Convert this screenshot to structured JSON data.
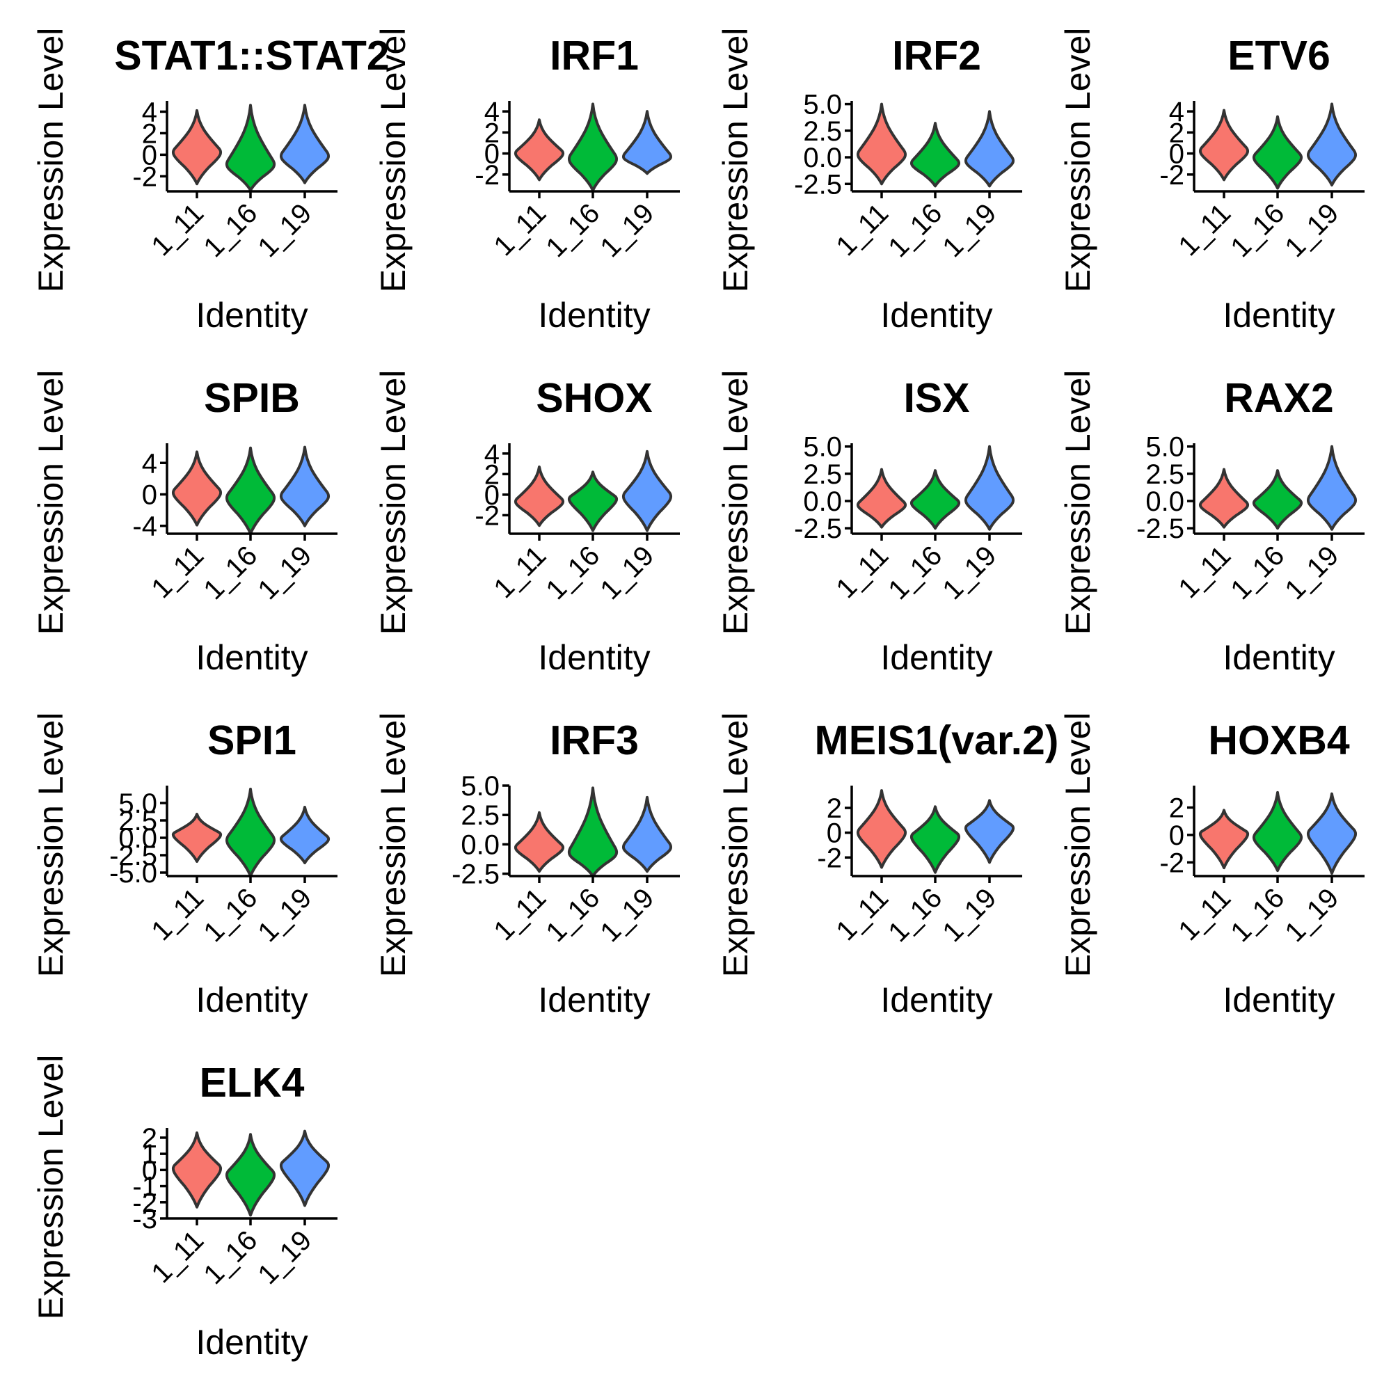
{
  "colors": {
    "group_fills": [
      "#f8766d",
      "#00ba38",
      "#619cff"
    ],
    "outline": "#333333",
    "axis": "#000000",
    "background": "#ffffff"
  },
  "chart_data": [
    {
      "type": "violin",
      "title": "STAT1::STAT2",
      "xlabel": "Identity",
      "ylabel": "Expression Level",
      "categories": [
        "1_11",
        "1_16",
        "1_19"
      ],
      "ylim": [
        -3.4,
        5.0
      ],
      "yticks": [
        -2,
        0,
        2,
        4
      ],
      "ytick_labels": [
        "-2",
        "0",
        "2",
        "4"
      ],
      "violins": [
        {
          "category": "1_11",
          "min": -2.7,
          "max": 4.1,
          "center": 0.2
        },
        {
          "category": "1_16",
          "min": -3.3,
          "max": 4.6,
          "center": -1.0
        },
        {
          "category": "1_19",
          "min": -2.6,
          "max": 4.6,
          "center": -0.2
        }
      ]
    },
    {
      "type": "violin",
      "title": "IRF1",
      "xlabel": "Identity",
      "ylabel": "Expression Level",
      "categories": [
        "1_11",
        "1_16",
        "1_19"
      ],
      "ylim": [
        -3.6,
        5.0
      ],
      "yticks": [
        -2,
        0,
        2,
        4
      ],
      "ytick_labels": [
        "-2",
        "0",
        "2",
        "4"
      ],
      "violins": [
        {
          "category": "1_11",
          "min": -2.5,
          "max": 3.2,
          "center": 0.0
        },
        {
          "category": "1_16",
          "min": -3.5,
          "max": 4.7,
          "center": -0.6
        },
        {
          "category": "1_19",
          "min": -1.9,
          "max": 4.0,
          "center": -0.4
        }
      ]
    },
    {
      "type": "violin",
      "title": "IRF2",
      "xlabel": "Identity",
      "ylabel": "Expression Level",
      "categories": [
        "1_11",
        "1_16",
        "1_19"
      ],
      "ylim": [
        -3.2,
        5.3
      ],
      "yticks": [
        -2.5,
        0.0,
        2.5,
        5.0
      ],
      "ytick_labels": [
        "-2.5",
        "0.0",
        "2.5",
        "5.0"
      ],
      "violins": [
        {
          "category": "1_11",
          "min": -2.5,
          "max": 5.0,
          "center": 0.2
        },
        {
          "category": "1_16",
          "min": -2.7,
          "max": 3.2,
          "center": -0.6
        },
        {
          "category": "1_19",
          "min": -2.7,
          "max": 4.3,
          "center": -0.4
        }
      ]
    },
    {
      "type": "violin",
      "title": "ETV6",
      "xlabel": "Identity",
      "ylabel": "Expression Level",
      "categories": [
        "1_11",
        "1_16",
        "1_19"
      ],
      "ylim": [
        -3.6,
        5.0
      ],
      "yticks": [
        -2,
        0,
        2,
        4
      ],
      "ytick_labels": [
        "-2",
        "0",
        "2",
        "4"
      ],
      "violins": [
        {
          "category": "1_11",
          "min": -2.5,
          "max": 4.1,
          "center": 0.2
        },
        {
          "category": "1_16",
          "min": -3.3,
          "max": 3.5,
          "center": -0.4
        },
        {
          "category": "1_19",
          "min": -3.0,
          "max": 4.7,
          "center": -0.2
        }
      ]
    },
    {
      "type": "violin",
      "title": "SPIB",
      "xlabel": "Identity",
      "ylabel": "Expression Level",
      "categories": [
        "1_11",
        "1_16",
        "1_19"
      ],
      "ylim": [
        -5.0,
        6.5
      ],
      "yticks": [
        -4,
        0,
        4
      ],
      "ytick_labels": [
        "-4",
        "0",
        "4"
      ],
      "violins": [
        {
          "category": "1_11",
          "min": -3.9,
          "max": 5.4,
          "center": 0.2
        },
        {
          "category": "1_16",
          "min": -5.0,
          "max": 5.9,
          "center": -0.5
        },
        {
          "category": "1_19",
          "min": -4.0,
          "max": 6.0,
          "center": -0.3
        }
      ]
    },
    {
      "type": "violin",
      "title": "SHOX",
      "xlabel": "Identity",
      "ylabel": "Expression Level",
      "categories": [
        "1_11",
        "1_16",
        "1_19"
      ],
      "ylim": [
        -3.8,
        5.0
      ],
      "yticks": [
        -2,
        0,
        2,
        4
      ],
      "ytick_labels": [
        "-2",
        "0",
        "2",
        "4"
      ],
      "violins": [
        {
          "category": "1_11",
          "min": -3.0,
          "max": 2.7,
          "center": -0.7
        },
        {
          "category": "1_16",
          "min": -3.5,
          "max": 2.2,
          "center": -0.4
        },
        {
          "category": "1_19",
          "min": -3.5,
          "max": 4.2,
          "center": -0.2
        }
      ]
    },
    {
      "type": "violin",
      "title": "ISX",
      "xlabel": "Identity",
      "ylabel": "Expression Level",
      "categories": [
        "1_11",
        "1_16",
        "1_19"
      ],
      "ylim": [
        -3.0,
        5.3
      ],
      "yticks": [
        -2.5,
        0.0,
        2.5,
        5.0
      ],
      "ytick_labels": [
        "-2.5",
        "0.0",
        "2.5",
        "5.0"
      ],
      "violins": [
        {
          "category": "1_11",
          "min": -2.4,
          "max": 2.9,
          "center": -0.4
        },
        {
          "category": "1_16",
          "min": -2.5,
          "max": 2.8,
          "center": -0.2
        },
        {
          "category": "1_19",
          "min": -2.6,
          "max": 5.0,
          "center": 0.0
        }
      ]
    },
    {
      "type": "violin",
      "title": "RAX2",
      "xlabel": "Identity",
      "ylabel": "Expression Level",
      "categories": [
        "1_11",
        "1_16",
        "1_19"
      ],
      "ylim": [
        -3.0,
        5.3
      ],
      "yticks": [
        -2.5,
        0.0,
        2.5,
        5.0
      ],
      "ytick_labels": [
        "-2.5",
        "0.0",
        "2.5",
        "5.0"
      ],
      "violins": [
        {
          "category": "1_11",
          "min": -2.4,
          "max": 2.9,
          "center": -0.4
        },
        {
          "category": "1_16",
          "min": -2.5,
          "max": 2.8,
          "center": -0.2
        },
        {
          "category": "1_19",
          "min": -2.6,
          "max": 5.0,
          "center": 0.0
        }
      ]
    },
    {
      "type": "violin",
      "title": "SPI1",
      "xlabel": "Identity",
      "ylabel": "Expression Level",
      "categories": [
        "1_11",
        "1_16",
        "1_19"
      ],
      "ylim": [
        -5.5,
        7.5
      ],
      "yticks": [
        -5.0,
        -2.5,
        0.0,
        2.5,
        5.0
      ],
      "ytick_labels": [
        "-5.0",
        "-2.5",
        "0.0",
        "2.5",
        "5.0"
      ],
      "violins": [
        {
          "category": "1_11",
          "min": -3.4,
          "max": 3.4,
          "center": 0.5
        },
        {
          "category": "1_16",
          "min": -5.5,
          "max": 7.0,
          "center": -0.4
        },
        {
          "category": "1_19",
          "min": -3.6,
          "max": 4.4,
          "center": -0.2
        }
      ]
    },
    {
      "type": "violin",
      "title": "IRF3",
      "xlabel": "Identity",
      "ylabel": "Expression Level",
      "categories": [
        "1_11",
        "1_16",
        "1_19"
      ],
      "ylim": [
        -2.7,
        5.0
      ],
      "yticks": [
        -2.5,
        0.0,
        2.5,
        5.0
      ],
      "ytick_labels": [
        "-2.5",
        "0.0",
        "2.5",
        "5.0"
      ],
      "violins": [
        {
          "category": "1_11",
          "min": -2.3,
          "max": 2.7,
          "center": -0.3
        },
        {
          "category": "1_16",
          "min": -2.7,
          "max": 4.8,
          "center": -0.8
        },
        {
          "category": "1_19",
          "min": -2.3,
          "max": 4.0,
          "center": -0.3
        }
      ]
    },
    {
      "type": "violin",
      "title": "MEIS1(var.2)",
      "xlabel": "Identity",
      "ylabel": "Expression Level",
      "categories": [
        "1_11",
        "1_16",
        "1_19"
      ],
      "ylim": [
        -3.5,
        3.8
      ],
      "yticks": [
        -2,
        0,
        2
      ],
      "ytick_labels": [
        "-2",
        "0",
        "2"
      ],
      "violins": [
        {
          "category": "1_11",
          "min": -2.8,
          "max": 3.4,
          "center": 0.0
        },
        {
          "category": "1_16",
          "min": -3.2,
          "max": 2.1,
          "center": -0.3
        },
        {
          "category": "1_19",
          "min": -2.4,
          "max": 2.6,
          "center": 0.4
        }
      ]
    },
    {
      "type": "violin",
      "title": "HOXB4",
      "xlabel": "Identity",
      "ylabel": "Expression Level",
      "categories": [
        "1_11",
        "1_16",
        "1_19"
      ],
      "ylim": [
        -3.0,
        3.6
      ],
      "yticks": [
        -2,
        0,
        2
      ],
      "ytick_labels": [
        "-2",
        "0",
        "2"
      ],
      "violins": [
        {
          "category": "1_11",
          "min": -2.4,
          "max": 1.8,
          "center": 0.1
        },
        {
          "category": "1_16",
          "min": -2.6,
          "max": 3.1,
          "center": -0.2
        },
        {
          "category": "1_19",
          "min": -2.8,
          "max": 3.0,
          "center": 0.1
        }
      ]
    },
    {
      "type": "violin",
      "title": "ELK4",
      "xlabel": "Identity",
      "ylabel": "Expression Level",
      "categories": [
        "1_11",
        "1_16",
        "1_19"
      ],
      "ylim": [
        -3.0,
        2.6
      ],
      "yticks": [
        -3,
        -2,
        -1,
        0,
        1,
        2
      ],
      "ytick_labels": [
        "-3",
        "-2",
        "-1",
        "0",
        "1",
        "2"
      ],
      "violins": [
        {
          "category": "1_11",
          "min": -2.3,
          "max": 2.3,
          "center": 0.1
        },
        {
          "category": "1_16",
          "min": -2.8,
          "max": 2.2,
          "center": -0.3
        },
        {
          "category": "1_19",
          "min": -2.2,
          "max": 2.4,
          "center": 0.3
        }
      ]
    }
  ]
}
